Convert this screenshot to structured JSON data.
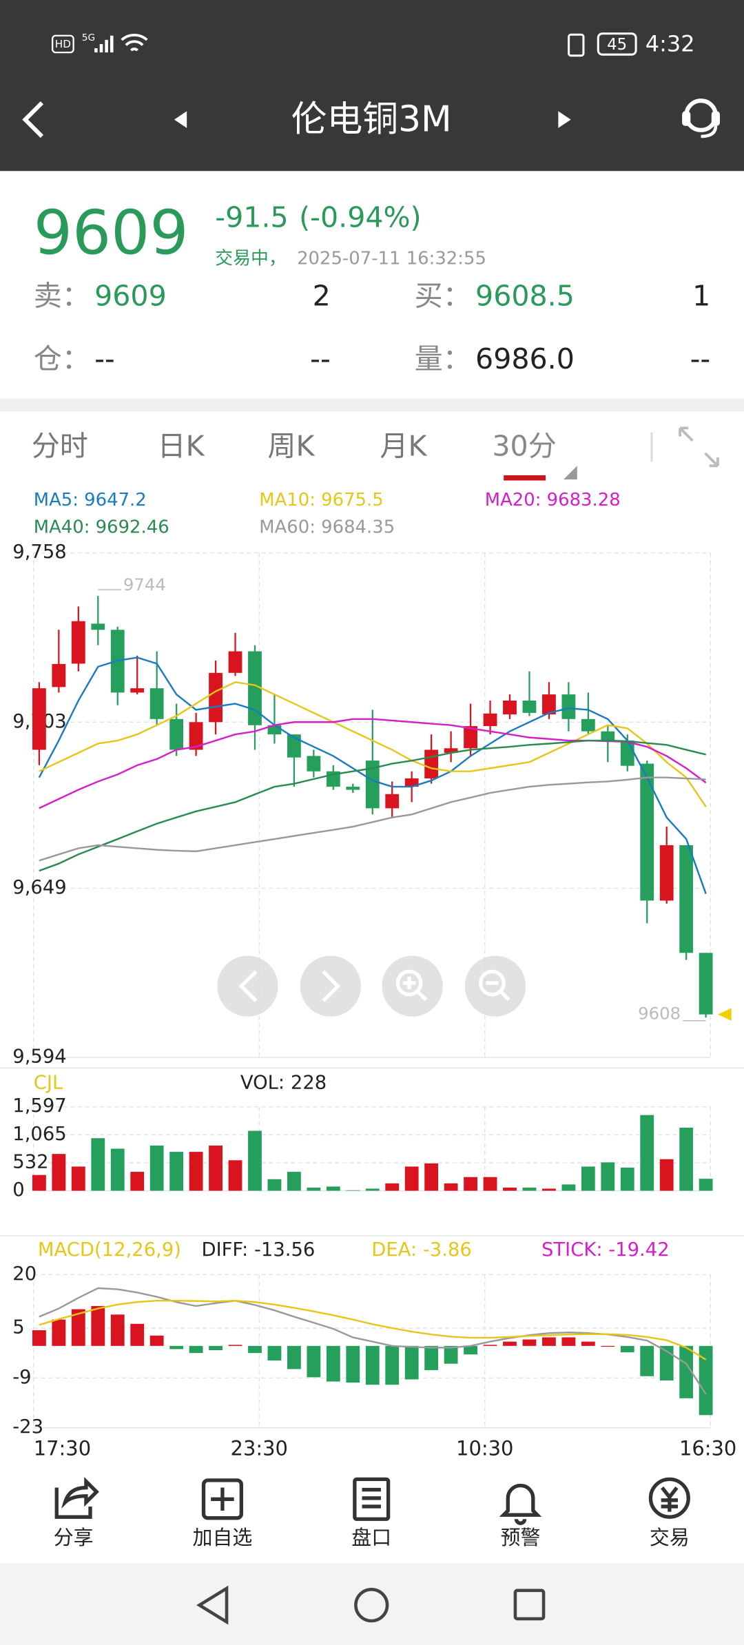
{
  "status_bar": {
    "network": "HD",
    "signal": "5G",
    "battery": "45",
    "time": "4:32"
  },
  "header": {
    "title": "伦电铜3M"
  },
  "quote": {
    "price": "9609",
    "change": "-91.5",
    "change_pct": "(-0.94%)",
    "status": "交易中，",
    "timestamp": "2025-07-11 16:32:55",
    "rows": [
      {
        "label": "卖：",
        "value": "9609",
        "qty": "2"
      },
      {
        "label": "买：",
        "value": "9608.5",
        "qty": "1"
      },
      {
        "label": "仓：",
        "value": "--",
        "qty": "--"
      },
      {
        "label": "量：",
        "value": "6986.0",
        "qty": "--"
      }
    ]
  },
  "tabs": [
    "分时",
    "日K",
    "周K",
    "月K",
    "30分"
  ],
  "active_tab": 4,
  "chart_data": [
    {
      "type": "candlestick",
      "up_color": "#d9141e",
      "down_color": "#25a05c",
      "open": [
        9694,
        9714.4,
        9722,
        9735,
        9733,
        9712.6,
        9714,
        9704,
        9694,
        9703,
        9719,
        9726,
        9702,
        9699,
        9692,
        9687,
        9682,
        9690.5,
        9675,
        9682,
        9684.7,
        9693,
        9694.5,
        9701.7,
        9705.5,
        9710,
        9705.5,
        9712,
        9704,
        9700,
        9697,
        9689.5,
        9645,
        9663,
        9628
      ],
      "high": [
        9716,
        9733,
        9740.6,
        9744,
        9734,
        9724.6,
        9726,
        9709,
        9706,
        9723,
        9732,
        9728,
        9712,
        9699,
        9694,
        9689,
        9683,
        9707,
        9683.7,
        9687,
        9699,
        9700,
        9709,
        9710,
        9712,
        9719.5,
        9716,
        9716,
        9712.6,
        9702,
        9699,
        9690.5,
        9669,
        9663,
        9628
      ],
      "low": [
        9689,
        9712.6,
        9719.5,
        9728,
        9708.5,
        9712,
        9702,
        9692,
        9692,
        9699,
        9718,
        9694,
        9696,
        9682,
        9685,
        9681,
        9680,
        9673,
        9671.7,
        9677,
        9683,
        9690,
        9692,
        9699,
        9704,
        9705,
        9704,
        9700,
        9699,
        9690,
        9687,
        9637.6,
        9644,
        9625.7,
        9607
      ],
      "close": [
        9714,
        9721.9,
        9735.8,
        9733,
        9712.6,
        9714,
        9704,
        9694,
        9703,
        9719,
        9726,
        9702,
        9699,
        9691.5,
        9687,
        9682,
        9681,
        9675,
        9679.6,
        9684.7,
        9694,
        9694.5,
        9701.7,
        9705.8,
        9710,
        9706,
        9712,
        9704,
        9700,
        9697,
        9688.8,
        9645,
        9663,
        9628,
        9608
      ],
      "ma": [
        {
          "label": "MA5: 9647.2",
          "color": "#1a7bc0",
          "values": [
            9685,
            9697,
            9710,
            9721,
            9723,
            9724,
            9722,
            9712,
            9707,
            9708,
            9709,
            9707,
            9702,
            9698,
            9695,
            9692,
            9688,
            9684,
            9682,
            9682,
            9684,
            9687,
            9692,
            9696,
            9700,
            9703,
            9706,
            9707.5,
            9707,
            9704,
            9697,
            9685,
            9672,
            9665,
            9647.2
          ]
        },
        {
          "label": "MA10: 9675.5",
          "color": "#e6c619",
          "values": [
            9687,
            9690,
            9693,
            9696,
            9697,
            9699,
            9702,
            9705,
            9709,
            9713,
            9716,
            9715,
            9712,
            9709,
            9706,
            9703,
            9700,
            9697,
            9694,
            9690.5,
            9688,
            9687,
            9687,
            9688,
            9689,
            9690,
            9693,
            9696,
            9699,
            9702,
            9701,
            9696,
            9690,
            9685,
            9675.5
          ]
        },
        {
          "label": "MA20: 9683.28",
          "color": "#d61ec9",
          "values": [
            9675,
            9678,
            9681,
            9683.7,
            9686,
            9689,
            9691,
            9694,
            9695,
            9697,
            9699,
            9700,
            9702,
            9703,
            9703,
            9703,
            9704,
            9704,
            9703.5,
            9703,
            9702.5,
            9702,
            9701,
            9700,
            9699,
            9698,
            9697.5,
            9697,
            9697,
            9696.8,
            9696.6,
            9695,
            9692,
            9688,
            9683.28
          ]
        },
        {
          "label": "MA40: 9692.46",
          "color": "#2a8a50",
          "values": [
            9654.7,
            9657,
            9660,
            9662.5,
            9665,
            9667.5,
            9670,
            9672,
            9674,
            9675.5,
            9677,
            9679.5,
            9682,
            9683,
            9684.5,
            9686,
            9687,
            9688,
            9689.5,
            9690.5,
            9691.7,
            9693,
            9694,
            9694.5,
            9695,
            9695.6,
            9696,
            9696.5,
            9697,
            9697,
            9696.8,
            9696.2,
            9695.6,
            9694,
            9692.46
          ]
        },
        {
          "label": "MA60: 9684.35",
          "color": "#999999",
          "values": [
            9658,
            9660,
            9662,
            9663,
            9662.5,
            9662,
            9661.5,
            9661.2,
            9661,
            9662,
            9663,
            9664,
            9665,
            9666,
            9667,
            9668,
            9669,
            9670.5,
            9672,
            9673,
            9675,
            9677,
            9678.5,
            9680,
            9681,
            9682,
            9682.6,
            9683,
            9683.4,
            9683.7,
            9684.3,
            9685,
            9685,
            9684.7,
            9684.35
          ]
        }
      ],
      "ylim": [
        9594,
        9758
      ],
      "yticks": [
        {
          "value": 9594,
          "label": "9,594"
        },
        {
          "value": 9649,
          "label": "9,649"
        },
        {
          "value": 9703,
          "label": "9,703"
        },
        {
          "value": 9758,
          "label": "9,758"
        }
      ],
      "grid": true
    },
    {
      "type": "bar",
      "title": "CJL",
      "title_color": "#e6c619",
      "label": "VOL: 228",
      "values": [
        300,
        700,
        460,
        1000,
        800,
        360,
        860,
        740,
        740,
        860,
        580,
        1140,
        220,
        360,
        60,
        80,
        10,
        40,
        140,
        460,
        520,
        140,
        260,
        260,
        60,
        60,
        40,
        120,
        460,
        540,
        440,
        1440,
        600,
        1200,
        228
      ],
      "ylim": [
        0,
        1597
      ],
      "yticks": [
        0,
        532,
        {
          "value": 1065,
          "label": "1,065"
        },
        {
          "value": 1597,
          "label": "1,597"
        }
      ],
      "grid": true
    },
    {
      "type": "macd",
      "title": "MACD(12,26,9)",
      "title_color": "#e6c619",
      "series": [
        {
          "label": "DIFF: -13.56",
          "color": "#999999",
          "label_color": "#222222",
          "values": [
            8.2,
            10.5,
            13.5,
            16.2,
            15.9,
            15,
            13.8,
            12.3,
            11.2,
            12,
            12.7,
            11.5,
            10,
            8.2,
            6.5,
            4.8,
            2.4,
            1.2,
            0,
            -0.3,
            -0.5,
            -0.5,
            0,
            1.2,
            2.2,
            3,
            3.6,
            3.8,
            3.6,
            3.2,
            2.5,
            1.5,
            -1.5,
            -5,
            -13.56
          ]
        },
        {
          "label": "DEA: -3.86",
          "color": "#e6c619",
          "values": [
            5.9,
            7.5,
            9,
            10.5,
            11.6,
            12.3,
            12.7,
            12.7,
            12.6,
            12.5,
            12.7,
            12.3,
            11.6,
            10.7,
            9.7,
            8.6,
            7.4,
            6.1,
            5,
            4,
            3.2,
            2.6,
            2.3,
            2.3,
            2.5,
            2.8,
            3,
            3.2,
            3.3,
            3.3,
            3.1,
            2.5,
            1.6,
            -0.5,
            -3.86
          ]
        },
        {
          "label": "STICK: -19.42",
          "color": "#d61ec9",
          "bars": true,
          "values": [
            4.4,
            7.4,
            10.3,
            11.2,
            8.8,
            6.2,
            2.9,
            -0.9,
            -2,
            -1.2,
            0.3,
            -2,
            -4.1,
            -6.5,
            -8.8,
            -10,
            -10.3,
            -10.9,
            -10.9,
            -9.4,
            -6.8,
            -5,
            -2.4,
            0.3,
            1.2,
            1.8,
            2.4,
            2.4,
            1.2,
            0,
            -1.8,
            -8.5,
            -9.7,
            -14.7,
            -19.42
          ]
        }
      ],
      "ylim": [
        -23,
        20
      ],
      "yticks": [
        -23,
        -9,
        5,
        20
      ],
      "grid": true,
      "x_labels": [
        "17:30",
        "23:30",
        "10:30",
        "16:30"
      ]
    }
  ],
  "toolbar": [
    "分享",
    "加自选",
    "盘口",
    "预警",
    "交易"
  ]
}
